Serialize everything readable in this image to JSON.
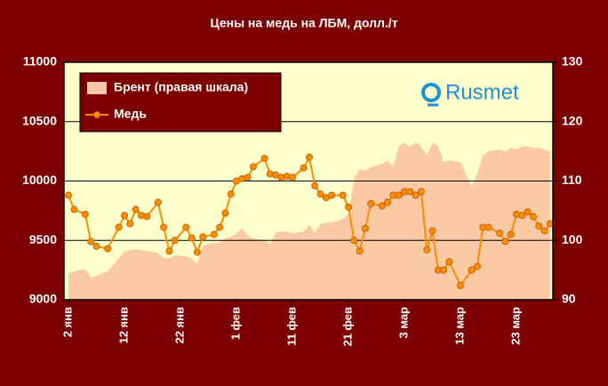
{
  "chart_data": {
    "type": "line",
    "title": "Цены на медь на ЛБМ, долл./т",
    "annotation": "Rusmet",
    "x": [
      0,
      1,
      3,
      4,
      5,
      7,
      9,
      10,
      11,
      12,
      13,
      14,
      16,
      17,
      18,
      19,
      21,
      22,
      23,
      24,
      26,
      27,
      28,
      29,
      30,
      31,
      32,
      33,
      35,
      36,
      37,
      38,
      39,
      40,
      42,
      43,
      44,
      45,
      46,
      47,
      49,
      50,
      51,
      52,
      53,
      54,
      56,
      57,
      58,
      59,
      60,
      61,
      62,
      63,
      64,
      65,
      66,
      67,
      68,
      70,
      72,
      73,
      74,
      75,
      77,
      78,
      79,
      80,
      81,
      82,
      83,
      84,
      85,
      86
    ],
    "xlim": [
      -0.8,
      86.5
    ],
    "xticks": [
      {
        "value": 0,
        "label": "2 янв"
      },
      {
        "value": 10,
        "label": "12 янв"
      },
      {
        "value": 20,
        "label": "22 янв"
      },
      {
        "value": 30,
        "label": "1 фев"
      },
      {
        "value": 40,
        "label": "11 фев"
      },
      {
        "value": 50,
        "label": "21 фев"
      },
      {
        "value": 60,
        "label": "3 мар"
      },
      {
        "value": 70,
        "label": "13 мар"
      },
      {
        "value": 80,
        "label": "23 мар"
      }
    ],
    "ylim": [
      9000,
      11000
    ],
    "yticks": [
      9000,
      9500,
      10000,
      10500,
      11000
    ],
    "y2lim": [
      90,
      130
    ],
    "y2ticks": [
      90,
      100,
      110,
      120,
      130
    ],
    "grid": true,
    "legend": "upper left",
    "series": [
      {
        "name": "Брент (правая шкала)",
        "type": "area",
        "axis": "y2",
        "color": "#fbc9a3",
        "values": [
          94.5,
          94.8,
          95.2,
          93.7,
          94.0,
          94.8,
          97.0,
          98.2,
          98.4,
          98.5,
          98.4,
          98.2,
          97.9,
          97.0,
          97.0,
          97.5,
          97.3,
          97.0,
          96.0,
          99.1,
          99.6,
          99.7,
          100.3,
          100.6,
          101.2,
          102.0,
          100.9,
          100.3,
          100.0,
          99.4,
          101.2,
          101.5,
          101.5,
          101.2,
          101.5,
          102.6,
          101.2,
          102.7,
          103.0,
          103.0,
          103.6,
          104.5,
          110.5,
          112.0,
          111.7,
          112.3,
          112.9,
          113.4,
          112.5,
          115.8,
          116.5,
          115.8,
          116.5,
          115.8,
          114.3,
          116.5,
          115.9,
          113.2,
          113.5,
          113.2,
          109.0,
          111.3,
          114.3,
          115.0,
          115.3,
          115.0,
          115.6,
          115.3,
          115.8,
          115.8,
          115.6,
          115.6,
          115.3,
          115.0
        ]
      },
      {
        "name": "Медь",
        "type": "line",
        "axis": "y",
        "color": "#ff8c00",
        "values": [
          9880,
          9760,
          9720,
          9490,
          9450,
          9430,
          9610,
          9710,
          9640,
          9760,
          9710,
          9700,
          9820,
          9610,
          9410,
          9500,
          9610,
          9520,
          9400,
          9530,
          9550,
          9610,
          9730,
          9890,
          10000,
          10020,
          10030,
          10120,
          10190,
          10060,
          10050,
          10030,
          10040,
          10030,
          10110,
          10200,
          9960,
          9890,
          9860,
          9880,
          9880,
          9780,
          9500,
          9410,
          9600,
          9810,
          9790,
          9820,
          9880,
          9880,
          9910,
          9910,
          9880,
          9910,
          9420,
          9580,
          9250,
          9250,
          9320,
          9120,
          9250,
          9280,
          9610,
          9610,
          9560,
          9490,
          9550,
          9720,
          9710,
          9740,
          9700,
          9620,
          9580,
          9640
        ]
      }
    ]
  }
}
